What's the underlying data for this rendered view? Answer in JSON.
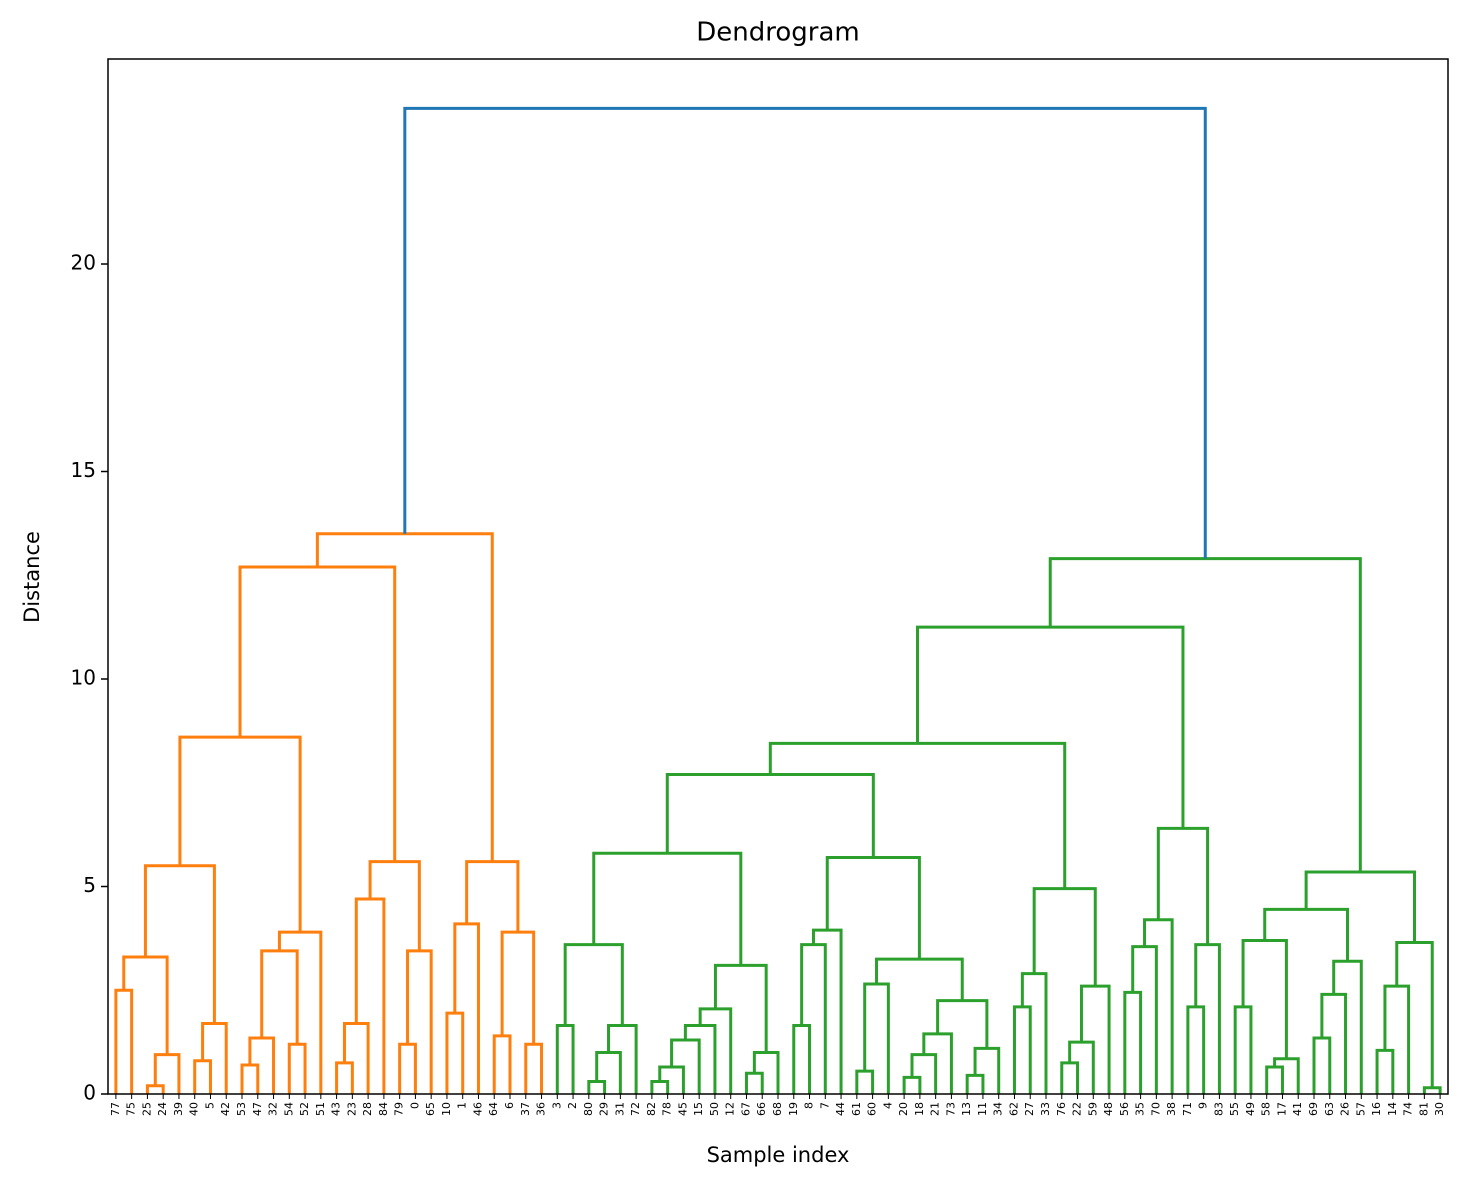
{
  "chart_data": {
    "type": "dendrogram",
    "title": "Dendrogram",
    "xlabel": "Sample index",
    "ylabel": "Distance",
    "ylim": [
      0,
      24.94
    ],
    "yticks": [
      0,
      5,
      10,
      15,
      20
    ],
    "tree": {
      "height": 23.75,
      "color": "#1f77b4",
      "children": [
        {
          "height": 13.5,
          "color": "#ff7f0e",
          "children": [
            {
              "height": 12.7,
              "children": [
                {
                  "height": 8.6,
                  "children": [
                    {
                      "height": 5.5,
                      "children": [
                        {
                          "height": 3.3,
                          "children": [
                            {
                              "height": 2.5,
                              "children": [
                                "77",
                                "75"
                              ]
                            },
                            {
                              "height": 0.95,
                              "children": [
                                {
                                  "height": 0.2,
                                  "children": [
                                    "25",
                                    "24"
                                  ]
                                },
                                "39"
                              ]
                            }
                          ]
                        },
                        {
                          "height": 1.7,
                          "children": [
                            {
                              "height": 0.8,
                              "children": [
                                "40",
                                "5"
                              ]
                            },
                            "42"
                          ]
                        }
                      ]
                    },
                    {
                      "height": 3.9,
                      "children": [
                        {
                          "height": 3.45,
                          "children": [
                            {
                              "height": 1.35,
                              "children": [
                                {
                                  "height": 0.7,
                                  "children": [
                                    "53",
                                    "47"
                                  ]
                                },
                                "32"
                              ]
                            },
                            {
                              "height": 1.2,
                              "children": [
                                "54",
                                "52"
                              ]
                            }
                          ]
                        },
                        "51"
                      ]
                    }
                  ]
                },
                {
                  "height": 5.6,
                  "children": [
                    {
                      "height": 4.7,
                      "children": [
                        {
                          "height": 1.7,
                          "children": [
                            {
                              "height": 0.75,
                              "children": [
                                "43",
                                "23"
                              ]
                            },
                            "28"
                          ]
                        },
                        "84"
                      ]
                    },
                    {
                      "height": 3.45,
                      "children": [
                        {
                          "height": 1.2,
                          "children": [
                            "79",
                            "0"
                          ]
                        },
                        "65"
                      ]
                    }
                  ]
                }
              ]
            },
            {
              "height": 5.6,
              "children": [
                {
                  "height": 4.1,
                  "children": [
                    {
                      "height": 1.95,
                      "children": [
                        "10",
                        "1"
                      ]
                    },
                    "46"
                  ]
                },
                {
                  "height": 3.9,
                  "children": [
                    {
                      "height": 1.4,
                      "children": [
                        "64",
                        "6"
                      ]
                    },
                    {
                      "height": 1.2,
                      "children": [
                        "37",
                        "36"
                      ]
                    }
                  ]
                }
              ]
            }
          ]
        },
        {
          "height": 12.9,
          "color": "#2ca02c",
          "children": [
            {
              "height": 11.25,
              "children": [
                {
                  "height": 8.45,
                  "children": [
                    {
                      "height": 7.7,
                      "children": [
                        {
                          "height": 5.8,
                          "children": [
                            {
                              "height": 3.6,
                              "children": [
                                {
                                  "height": 1.65,
                                  "children": [
                                    "3",
                                    "2"
                                  ]
                                },
                                {
                                  "height": 1.65,
                                  "children": [
                                    {
                                      "height": 1.0,
                                      "children": [
                                        {
                                          "height": 0.3,
                                          "children": [
                                            "80",
                                            "29"
                                          ]
                                        },
                                        "31"
                                      ]
                                    },
                                    "72"
                                  ]
                                }
                              ]
                            },
                            {
                              "height": 3.1,
                              "children": [
                                {
                                  "height": 2.05,
                                  "children": [
                                    {
                                      "height": 1.65,
                                      "children": [
                                        {
                                          "height": 1.3,
                                          "children": [
                                            {
                                              "height": 0.65,
                                              "children": [
                                                {
                                                  "height": 0.3,
                                                  "children": [
                                                    "82",
                                                    "78"
                                                  ]
                                                },
                                                "45"
                                              ]
                                            },
                                            "15"
                                          ]
                                        },
                                        "50"
                                      ]
                                    },
                                    "12"
                                  ]
                                },
                                {
                                  "height": 1.0,
                                  "children": [
                                    {
                                      "height": 0.5,
                                      "children": [
                                        "67",
                                        "66"
                                      ]
                                    },
                                    "68"
                                  ]
                                }
                              ]
                            }
                          ]
                        },
                        {
                          "height": 5.7,
                          "children": [
                            {
                              "height": 3.95,
                              "children": [
                                {
                                  "height": 3.6,
                                  "children": [
                                    {
                                      "height": 1.65,
                                      "children": [
                                        "19",
                                        "8"
                                      ]
                                    },
                                    "7"
                                  ]
                                },
                                "44"
                              ]
                            },
                            {
                              "height": 3.25,
                              "children": [
                                {
                                  "height": 2.65,
                                  "children": [
                                    {
                                      "height": 0.55,
                                      "children": [
                                        "61",
                                        "60"
                                      ]
                                    },
                                    "4"
                                  ]
                                },
                                {
                                  "height": 2.25,
                                  "children": [
                                    {
                                      "height": 1.45,
                                      "children": [
                                        {
                                          "height": 0.95,
                                          "children": [
                                            {
                                              "height": 0.4,
                                              "children": [
                                                "20",
                                                "18"
                                              ]
                                            },
                                            "21"
                                          ]
                                        },
                                        "73"
                                      ]
                                    },
                                    {
                                      "height": 1.1,
                                      "children": [
                                        {
                                          "height": 0.45,
                                          "children": [
                                            "13",
                                            "11"
                                          ]
                                        },
                                        "34"
                                      ]
                                    }
                                  ]
                                }
                              ]
                            }
                          ]
                        }
                      ]
                    },
                    {
                      "height": 4.95,
                      "children": [
                        {
                          "height": 2.9,
                          "children": [
                            {
                              "height": 2.1,
                              "children": [
                                "62",
                                "27"
                              ]
                            },
                            "33"
                          ]
                        },
                        {
                          "height": 2.6,
                          "children": [
                            {
                              "height": 1.25,
                              "children": [
                                {
                                  "height": 0.75,
                                  "children": [
                                    "76",
                                    "22"
                                  ]
                                },
                                "59"
                              ]
                            },
                            "48"
                          ]
                        }
                      ]
                    }
                  ]
                },
                {
                  "height": 6.4,
                  "children": [
                    {
                      "height": 4.2,
                      "children": [
                        {
                          "height": 3.55,
                          "children": [
                            {
                              "height": 2.45,
                              "children": [
                                "56",
                                "35"
                              ]
                            },
                            "70"
                          ]
                        },
                        "38"
                      ]
                    },
                    {
                      "height": 3.6,
                      "children": [
                        {
                          "height": 2.1,
                          "children": [
                            "71",
                            "9"
                          ]
                        },
                        "83"
                      ]
                    }
                  ]
                }
              ]
            },
            {
              "height": 5.35,
              "children": [
                {
                  "height": 4.45,
                  "children": [
                    {
                      "height": 3.7,
                      "children": [
                        {
                          "height": 2.1,
                          "children": [
                            "55",
                            "49"
                          ]
                        },
                        {
                          "height": 0.85,
                          "children": [
                            {
                              "height": 0.65,
                              "children": [
                                "58",
                                "17"
                              ]
                            },
                            "41"
                          ]
                        }
                      ]
                    },
                    {
                      "height": 3.2,
                      "children": [
                        {
                          "height": 2.4,
                          "children": [
                            {
                              "height": 1.35,
                              "children": [
                                "69",
                                "63"
                              ]
                            },
                            "26"
                          ]
                        },
                        "57"
                      ]
                    }
                  ]
                },
                {
                  "height": 3.65,
                  "children": [
                    {
                      "height": 2.6,
                      "children": [
                        {
                          "height": 1.05,
                          "children": [
                            "16",
                            "14"
                          ]
                        },
                        "74"
                      ]
                    },
                    {
                      "height": 0.15,
                      "children": [
                        "81",
                        "30"
                      ]
                    }
                  ]
                }
              ]
            }
          ]
        }
      ]
    }
  }
}
